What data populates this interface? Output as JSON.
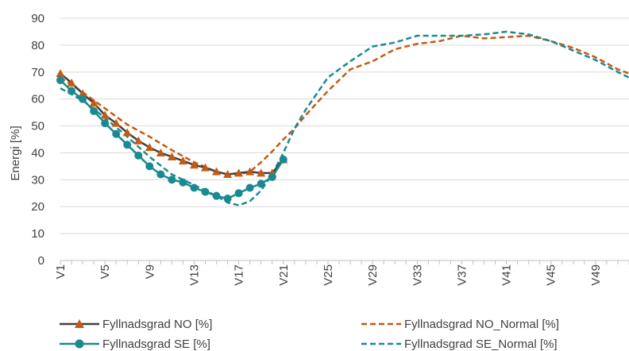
{
  "chart_data": {
    "type": "line",
    "title": "",
    "xlabel": "",
    "ylabel": "Energi [%]",
    "ylim": [
      0,
      90
    ],
    "yticks": [
      0,
      10,
      20,
      30,
      40,
      50,
      60,
      70,
      80,
      90
    ],
    "xticks": [
      "V1",
      "V5",
      "V9",
      "V13",
      "V17",
      "V21",
      "V25",
      "V29",
      "V33",
      "V37",
      "V41",
      "V45",
      "V49"
    ],
    "week_range": [
      1,
      52
    ],
    "grid": "horizontal",
    "legend_position": "bottom",
    "colors": {
      "no": "#C55A11",
      "se": "#1A8A91",
      "no_line": "#404040"
    },
    "series": [
      {
        "name": "Fyllnadsgrad NO [%]",
        "style": "solid-triangle",
        "x": [
          1,
          2,
          3,
          4,
          5,
          6,
          7,
          8,
          9,
          10,
          11,
          12,
          13,
          14,
          15,
          16,
          17,
          18,
          19,
          20,
          21
        ],
        "values": [
          69.5,
          66,
          62,
          58.5,
          54,
          51,
          47.5,
          44.5,
          42,
          40,
          38.5,
          37,
          35.5,
          34.5,
          33,
          32,
          32.5,
          33,
          32.5,
          32.5,
          37.5
        ]
      },
      {
        "name": "Fyllnadsgrad SE [%]",
        "style": "solid-circle",
        "x": [
          1,
          2,
          3,
          4,
          5,
          6,
          7,
          8,
          9,
          10,
          11,
          12,
          13,
          14,
          15,
          16,
          17,
          18,
          19,
          20,
          21
        ],
        "values": [
          67,
          63,
          60,
          55.5,
          51,
          47,
          43,
          39,
          35,
          32,
          30,
          29,
          27,
          25.5,
          24,
          23,
          25,
          27,
          28.5,
          31,
          37.5
        ]
      },
      {
        "name": "Fyllnadsgrad NO_Normal [%]",
        "style": "dashed",
        "x": [
          1,
          3,
          5,
          7,
          9,
          11,
          13,
          15,
          16,
          17,
          18,
          19,
          20,
          21,
          22,
          23,
          25,
          27,
          29,
          31,
          33,
          35,
          37,
          39,
          41,
          43,
          45,
          47,
          49,
          51,
          52
        ],
        "values": [
          68,
          62.5,
          56.5,
          50.5,
          46,
          41,
          36.5,
          33,
          32,
          32,
          33,
          36.5,
          40.5,
          45,
          49,
          54,
          63,
          71,
          74,
          78.5,
          80.5,
          81.5,
          83.5,
          82.5,
          83,
          83.5,
          81.5,
          79,
          75.5,
          71,
          69.5
        ]
      },
      {
        "name": "Fyllnadsgrad SE_Normal [%]",
        "style": "dashed",
        "x": [
          1,
          3,
          5,
          7,
          9,
          11,
          13,
          15,
          16,
          17,
          18,
          19,
          20,
          21,
          22,
          23,
          25,
          27,
          29,
          31,
          33,
          35,
          37,
          39,
          41,
          43,
          45,
          47,
          49,
          51,
          52
        ],
        "values": [
          64,
          59.5,
          53,
          46,
          38.5,
          32,
          28,
          24,
          21.5,
          20.5,
          22,
          26,
          32,
          40,
          49,
          56,
          68,
          74,
          79.5,
          81,
          83.5,
          83.5,
          83.5,
          84,
          85,
          84,
          81.5,
          78,
          74.5,
          70,
          68
        ]
      }
    ]
  }
}
